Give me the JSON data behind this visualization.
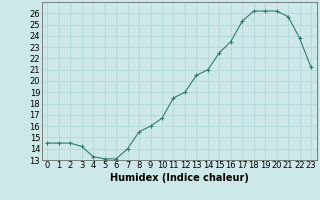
{
  "xlabel": "Humidex (Indice chaleur)",
  "x_values": [
    0,
    1,
    2,
    3,
    4,
    5,
    6,
    7,
    8,
    9,
    10,
    11,
    12,
    13,
    14,
    15,
    16,
    17,
    18,
    19,
    20,
    21,
    22,
    23
  ],
  "y_values": [
    14.5,
    14.5,
    14.5,
    14.2,
    13.3,
    13.1,
    13.1,
    14.0,
    15.5,
    16.0,
    16.7,
    18.5,
    19.0,
    20.5,
    21.0,
    22.5,
    23.5,
    25.3,
    26.2,
    26.2,
    26.2,
    25.7,
    23.8,
    21.2
  ],
  "ylim": [
    13,
    27
  ],
  "xlim": [
    -0.5,
    23.5
  ],
  "yticks": [
    13,
    14,
    15,
    16,
    17,
    18,
    19,
    20,
    21,
    22,
    23,
    24,
    25,
    26
  ],
  "xticks": [
    0,
    1,
    2,
    3,
    4,
    5,
    6,
    7,
    8,
    9,
    10,
    11,
    12,
    13,
    14,
    15,
    16,
    17,
    18,
    19,
    20,
    21,
    22,
    23
  ],
  "line_color": "#2e7d6e",
  "bg_color": "#cce8e8",
  "grid_color": "#b0d4d4",
  "font_size_label": 7,
  "font_size_tick": 6
}
